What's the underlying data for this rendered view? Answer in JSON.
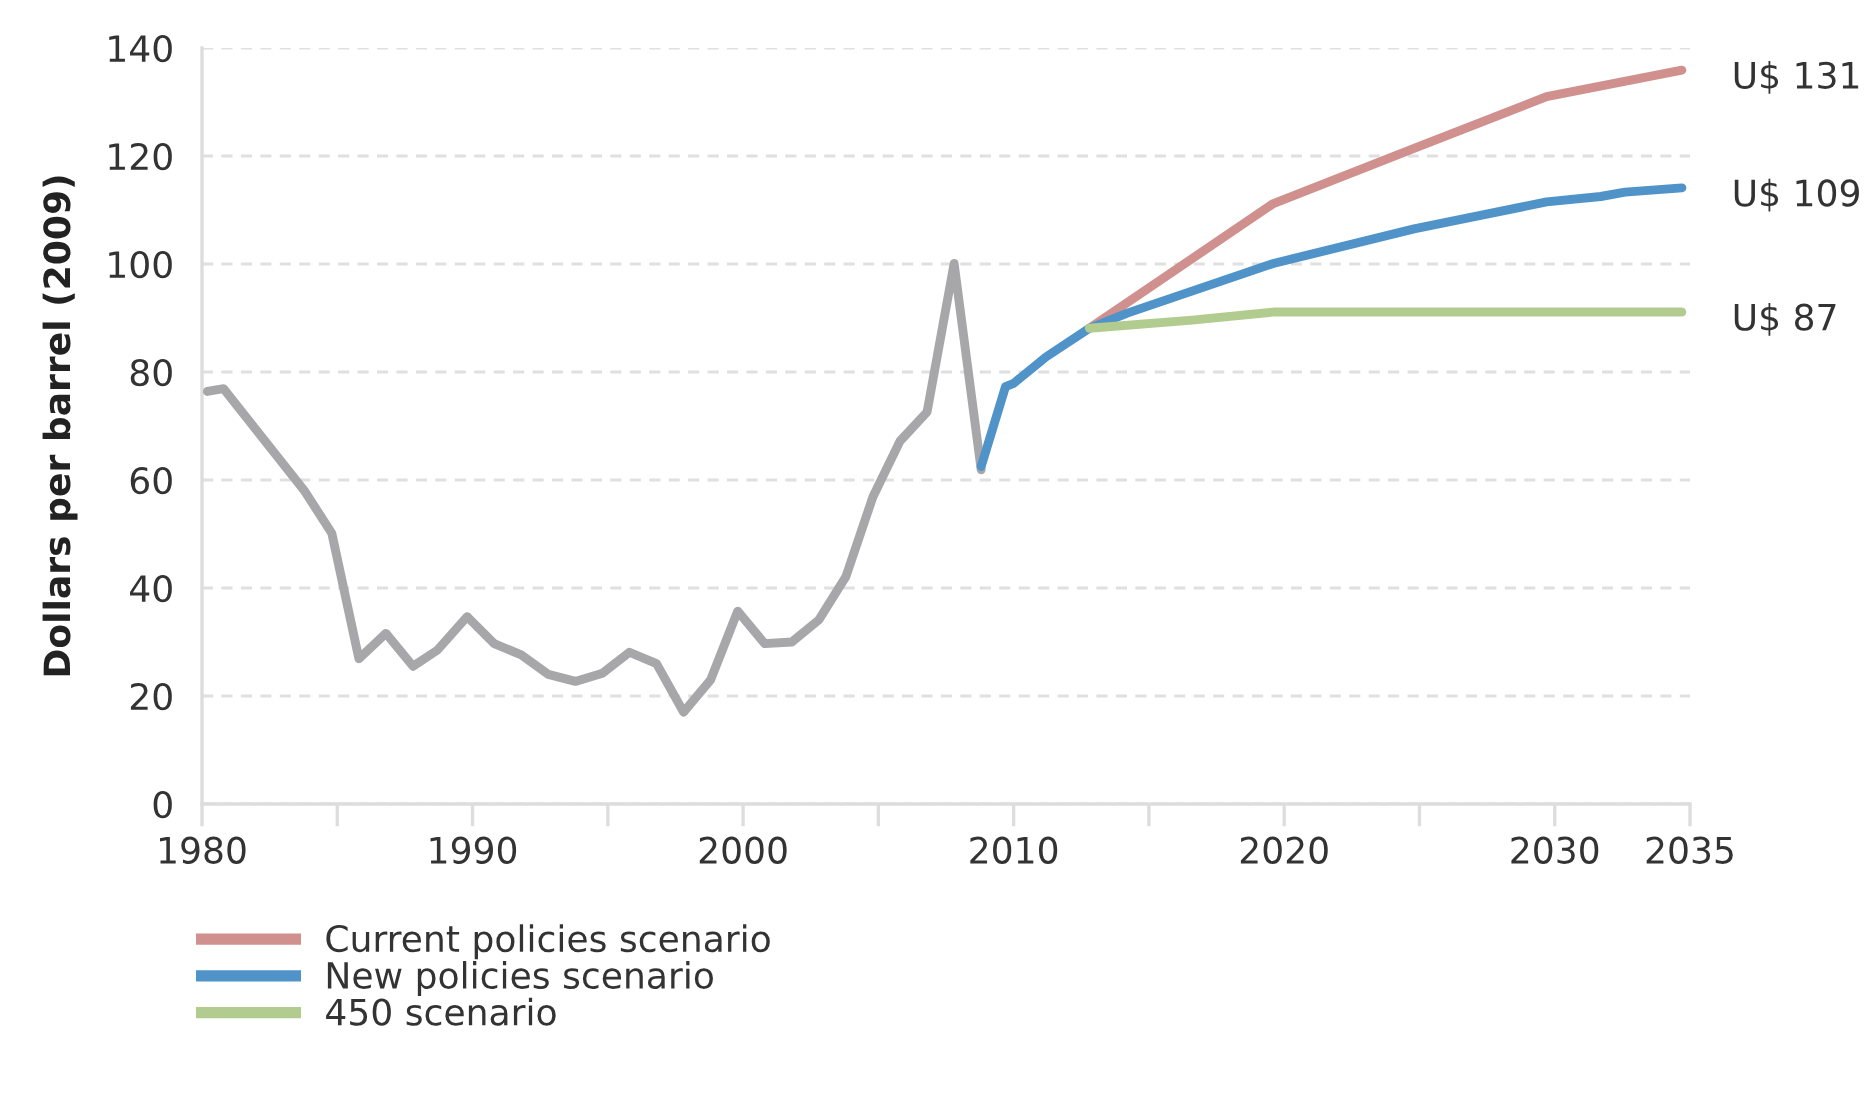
{
  "chart_data": {
    "type": "line",
    "ylabel": "Dollars per barrel (2009)",
    "xlim": [
      1980,
      2035
    ],
    "xticks": [
      1980,
      {
        "value": 1985,
        "label": null
      },
      1990,
      {
        "value": 1995,
        "label": null
      },
      2000,
      {
        "value": 2005,
        "label": null
      },
      2010,
      {
        "value": 2015,
        "label": null
      },
      2020,
      {
        "value": 2025,
        "label": null
      },
      2030,
      2035
    ],
    "ylim": [
      0,
      140
    ],
    "yticks": [
      0,
      20,
      40,
      60,
      80,
      100,
      120,
      140
    ],
    "grid": "y",
    "legend": "bottom",
    "line_style": "solid",
    "marker": "none",
    "series": [
      {
        "color": "#a7a7a9",
        "x": [
          1980.2,
          1980.8,
          1983.8,
          1984.8,
          1985.8,
          1986.8,
          1987.8,
          1988.7,
          1989.8,
          1990.8,
          1991.8,
          1992.8,
          1993.8,
          1994.8,
          1995.8,
          1996.8,
          1997.8,
          1998.8,
          1999.8,
          2000.8,
          2001.8,
          2002.8,
          2003.8,
          2004.8,
          2005.8,
          2006.8,
          2007.8,
          2008.8
        ],
        "values": [
          76.4,
          76.9,
          57.9,
          50.1,
          26.9,
          31.6,
          25.5,
          28.5,
          34.7,
          29.7,
          27.6,
          24.0,
          22.7,
          24.2,
          28.1,
          26.0,
          17.0,
          23.0,
          35.7,
          29.7,
          30.0,
          34.1,
          42.1,
          56.9,
          67.2,
          72.6,
          100.1,
          61.9
        ]
      },
      {
        "name": "Current policies scenario",
        "color": "#d0908e",
        "x": [
          2012.8,
          2019.6,
          2024.8,
          2029.7,
          2034.7
        ],
        "values": [
          88.1,
          111.2,
          121.4,
          131.0,
          135.9
        ]
      },
      {
        "name": "New policies scenario",
        "color": "#4f93c8",
        "x": [
          2008.8,
          2009.7,
          2010.0,
          2011.2,
          2012.8,
          2014.2,
          2019.6,
          2024.8,
          2029.7,
          2031.7,
          2032.6,
          2034.7
        ],
        "values": [
          62.5,
          77.3,
          77.9,
          82.8,
          88.1,
          90.9,
          100.1,
          106.5,
          111.5,
          112.5,
          113.3,
          114.1
        ]
      },
      {
        "name": "450 scenario",
        "color": "#b2cc8f",
        "x": [
          2012.8,
          2016.6,
          2019.6,
          2034.7
        ],
        "values": [
          88.1,
          89.6,
          91.1,
          91.1
        ]
      }
    ],
    "annotations": [
      "U$ 131",
      "U$ 109",
      "U$ 87"
    ]
  }
}
